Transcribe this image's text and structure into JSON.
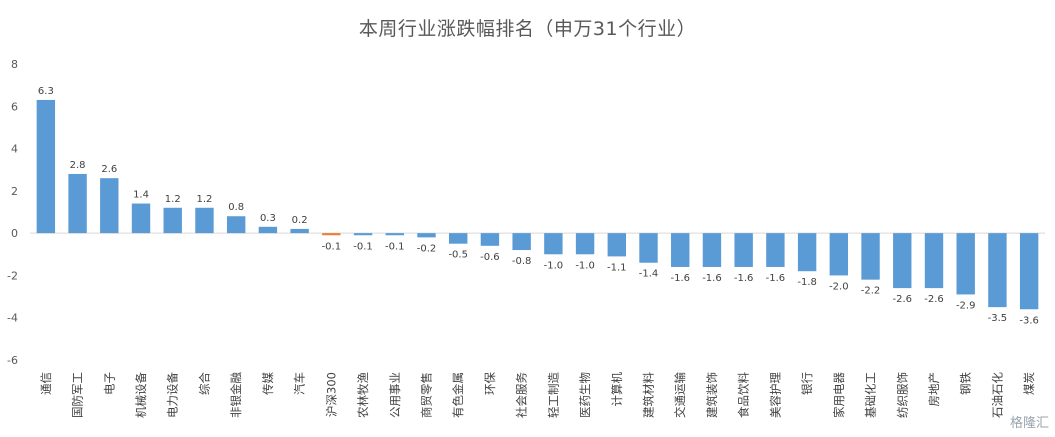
{
  "chart_data": {
    "type": "bar",
    "title": "本周行业涨跌幅排名（申万31个行业）",
    "xlabel": "",
    "ylabel": "",
    "ylim": [
      -6,
      8
    ],
    "yticks": [
      8,
      6,
      4,
      2,
      0,
      -2,
      -4,
      -6
    ],
    "grid": false,
    "legend": "none",
    "colors": {
      "default": "#5b9bd5",
      "highlight": "#ed7d31"
    },
    "highlight_category": "沪深300",
    "categories": [
      "通信",
      "国防军工",
      "电子",
      "机械设备",
      "电力设备",
      "综合",
      "非银金融",
      "传媒",
      "汽车",
      "沪深300",
      "农林牧渔",
      "公用事业",
      "商贸零售",
      "有色金属",
      "环保",
      "社会服务",
      "轻工制造",
      "医药生物",
      "计算机",
      "建筑材料",
      "交通运输",
      "建筑装饰",
      "食品饮料",
      "美容护理",
      "银行",
      "家用电器",
      "基础化工",
      "纺织服饰",
      "房地产",
      "钢铁",
      "石油石化",
      "煤炭"
    ],
    "values": [
      6.3,
      2.8,
      2.6,
      1.4,
      1.2,
      1.2,
      0.8,
      0.3,
      0.2,
      -0.1,
      -0.1,
      -0.1,
      -0.2,
      -0.5,
      -0.6,
      -0.8,
      -1.0,
      -1.0,
      -1.1,
      -1.4,
      -1.6,
      -1.6,
      -1.6,
      -1.6,
      -1.8,
      -2.0,
      -2.2,
      -2.6,
      -2.6,
      -2.9,
      -3.5,
      -3.6
    ],
    "data_labels": [
      "6.3",
      "2.8",
      "2.6",
      "1.4",
      "1.2",
      "1.2",
      "0.8",
      "0.3",
      "0.2",
      "-0.1",
      "-0.1",
      "-0.1",
      "-0.2",
      "-0.5",
      "-0.6",
      "-0.8",
      "-1.0",
      "-1.0",
      "-1.1",
      "-1.4",
      "-1.6",
      "-1.6",
      "-1.6",
      "-1.6",
      "-1.8",
      "-2.0",
      "-2.2",
      "-2.6",
      "-2.6",
      "-2.9",
      "-3.5",
      "-3.6"
    ]
  },
  "watermark": "格隆汇"
}
